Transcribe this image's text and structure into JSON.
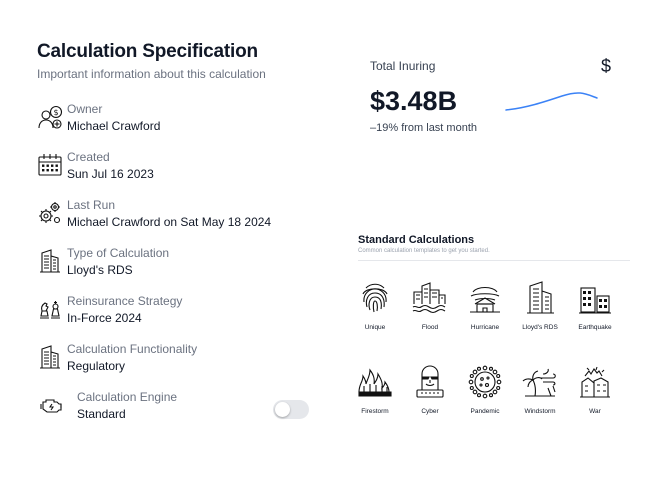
{
  "spec": {
    "title": "Calculation Specification",
    "subtitle": "Important information about this calculation",
    "fields": [
      {
        "label": "Owner",
        "value": "Michael Crawford",
        "icon": "owner-icon"
      },
      {
        "label": "Created",
        "value": "Sun Jul 16 2023",
        "icon": "calendar-icon"
      },
      {
        "label": "Last Run",
        "value": "Michael Crawford on Sat May 18 2024",
        "icon": "gears-icon"
      },
      {
        "label": "Type of Calculation",
        "value": "Lloyd's RDS",
        "icon": "building-icon"
      },
      {
        "label": "Reinsurance Strategy",
        "value": "In-Force 2024",
        "icon": "chess-icon"
      },
      {
        "label": "Calculation Functionality",
        "value": "Regulatory",
        "icon": "building-icon"
      },
      {
        "label": "Calculation Engine",
        "value": "Standard",
        "icon": "engine-icon"
      }
    ]
  },
  "stat": {
    "label": "Total Inuring",
    "currency": "$",
    "value": "$3.48B",
    "change": "–19% from last month",
    "accent": "#3b82f6"
  },
  "standard": {
    "title": "Standard Calculations",
    "subtitle": "Common calculation templates to get you started.",
    "templates": [
      {
        "label": "Unique",
        "icon": "fingerprint-icon"
      },
      {
        "label": "Flood",
        "icon": "flood-icon"
      },
      {
        "label": "Hurricane",
        "icon": "hurricane-icon"
      },
      {
        "label": "Lloyd's RDS",
        "icon": "building-icon"
      },
      {
        "label": "Earthquake",
        "icon": "earthquake-icon"
      },
      {
        "label": "Firestorm",
        "icon": "firestorm-icon"
      },
      {
        "label": "Cyber",
        "icon": "cyber-icon"
      },
      {
        "label": "Pandemic",
        "icon": "virus-icon"
      },
      {
        "label": "Windstorm",
        "icon": "windstorm-icon"
      },
      {
        "label": "War",
        "icon": "war-icon"
      }
    ]
  }
}
